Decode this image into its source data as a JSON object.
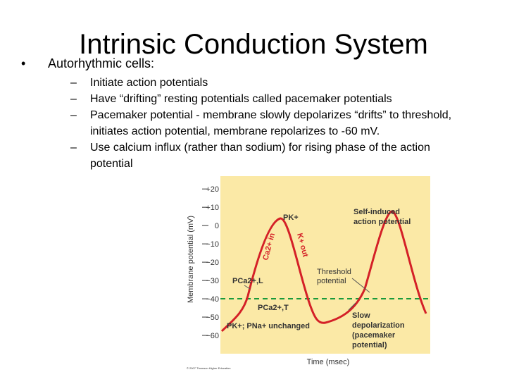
{
  "title": "Intrinsic Conduction System",
  "bullet": "Autorhythmic cells:",
  "subbullets": [
    [
      "Initiate action potentials"
    ],
    [
      "Have “drifting” resting potentials called pacemaker potentials"
    ],
    [
      "Pacemaker potential - membrane slowly depolarizes “drifts”  to threshold,",
      "initiates action potential, membrane repolarizes to -60 mV."
    ],
    [
      "Use calcium influx (rather than sodium) for rising phase of the action",
      "potential"
    ]
  ],
  "figure": {
    "y_label": "Membrane potential (mV)",
    "x_label": "Time (msec)",
    "ylim": [
      -70,
      27
    ],
    "yticks": [
      {
        "value": 20,
        "label": "+20"
      },
      {
        "value": 10,
        "label": "+10"
      },
      0,
      {
        "value": -10,
        "label": "−10"
      },
      {
        "value": -20,
        "label": "−20"
      },
      {
        "value": -30,
        "label": "−30"
      },
      {
        "value": -40,
        "label": "−40"
      },
      {
        "value": -50,
        "label": "−50"
      },
      {
        "value": -60,
        "label": "−60"
      }
    ],
    "threshold": -40,
    "annotations": {
      "pk": "PK+",
      "ca_in": "Ca2+ in",
      "k_out": "K+ out",
      "self_induced": [
        "Self-induced",
        "action potential"
      ],
      "threshold": [
        "Threshold",
        "potential"
      ],
      "pca_l": "PCa2+,L",
      "pca_t": "PCa2+,T",
      "slow": [
        "Slow",
        "depolarization",
        "(pacemaker",
        "potential)"
      ],
      "unchanged": "PK+; PNa+ unchanged",
      "copyright": "© 2007 Thomson Higher Education"
    }
  }
}
